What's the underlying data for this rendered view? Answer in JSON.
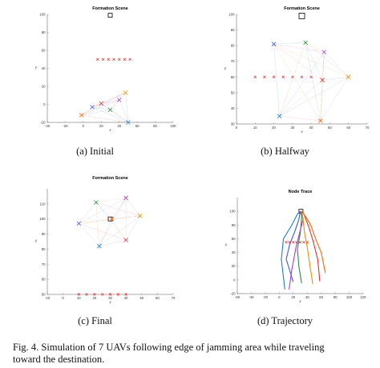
{
  "panels": [
    {
      "title": "Formation Scene",
      "caption": "(a)  Initial"
    },
    {
      "title": "Formation Scene",
      "caption": "(b)  Halfway"
    },
    {
      "title": "Formation Scene",
      "caption": "(c)  Final"
    },
    {
      "title": "Node Trace",
      "caption": "(d)  Trajectory"
    }
  ],
  "figure_caption": {
    "line1": "Fig. 4.  Simulation of 7 UAVs following edge of jamming area while traveling",
    "line2": "toward the destination."
  },
  "colors": {
    "uav": [
      "#3b5bdb",
      "#2b8a3e",
      "#ae3ec9",
      "#f08c00",
      "#e03131",
      "#1c7ed6",
      "#f76707"
    ],
    "jamming_edge": "#e03131",
    "edges": "#9aa7b5",
    "target": "#000000"
  },
  "chart_data": [
    {
      "type": "scatter",
      "title": "Formation Scene",
      "xlabel": "x",
      "ylabel": "y",
      "xlim": [
        -40,
        100
      ],
      "ylim": [
        -20,
        100
      ],
      "xticks": [
        -40,
        -20,
        0,
        20,
        40,
        60,
        80,
        100
      ],
      "yticks": [
        -20,
        0,
        20,
        40,
        60,
        80,
        100
      ],
      "target": [
        30,
        99
      ],
      "jamming_edge": {
        "x": [
          16,
          22,
          28,
          34,
          40,
          46,
          52
        ],
        "y": [
          50,
          50,
          50,
          50,
          50,
          50,
          50
        ]
      },
      "uavs": {
        "x": [
          10,
          30,
          40,
          47,
          20,
          50,
          -2
        ],
        "y": [
          -3,
          -6,
          5,
          13,
          1,
          -20,
          -12
        ]
      }
    },
    {
      "type": "scatter",
      "title": "Formation Scene",
      "xlabel": "x",
      "ylabel": "y",
      "xlim": [
        0,
        70
      ],
      "ylim": [
        30,
        100
      ],
      "xticks": [
        0,
        10,
        20,
        30,
        40,
        50,
        60,
        70
      ],
      "yticks": [
        30,
        40,
        50,
        60,
        70,
        80,
        90,
        100
      ],
      "target": [
        35,
        99
      ],
      "jamming_edge": {
        "x": [
          10,
          15,
          20,
          25,
          30,
          35,
          40
        ],
        "y": [
          60,
          60,
          60,
          60,
          60,
          60,
          60
        ]
      },
      "uavs": {
        "x": [
          20,
          37,
          47,
          60,
          46,
          23,
          45
        ],
        "y": [
          81,
          82,
          76,
          60,
          58,
          35,
          32
        ]
      }
    },
    {
      "type": "scatter",
      "title": "Formation Scene",
      "xlabel": "x",
      "ylabel": "y",
      "xlim": [
        -10,
        70
      ],
      "ylim": [
        50,
        120
      ],
      "xticks": [
        -10,
        0,
        10,
        20,
        30,
        40,
        50,
        60,
        70
      ],
      "yticks": [
        50,
        60,
        70,
        80,
        90,
        100,
        110
      ],
      "target": [
        30,
        100
      ],
      "jamming_edge": {
        "x": [
          10,
          15,
          20,
          25,
          30,
          35,
          40
        ],
        "y": [
          50,
          50,
          50,
          50,
          50,
          50,
          50
        ]
      },
      "uavs": {
        "x": [
          10,
          21,
          40,
          49,
          40,
          23,
          31
        ],
        "y": [
          97,
          111,
          114,
          102,
          86,
          82,
          100
        ]
      }
    },
    {
      "type": "line",
      "title": "Node Trace",
      "xlabel": "x",
      "ylabel": "y",
      "xlim": [
        -60,
        120
      ],
      "ylim": [
        -20,
        120
      ],
      "xticks": [
        -60,
        -40,
        -20,
        0,
        20,
        40,
        60,
        80,
        100,
        120
      ],
      "yticks": [
        -20,
        0,
        20,
        40,
        60,
        80,
        100
      ],
      "target": [
        31,
        100
      ],
      "jamming_edge": {
        "x": [
          10,
          15,
          20,
          25,
          30,
          35,
          40
        ],
        "y": [
          55,
          55,
          55,
          55,
          55,
          55,
          55
        ]
      },
      "series": [
        {
          "x": [
            20,
            10,
            15,
            22,
            28,
            30
          ],
          "y": [
            -3,
            30,
            52,
            70,
            88,
            100
          ]
        },
        {
          "x": [
            32,
            28,
            26,
            30,
            32,
            31
          ],
          "y": [
            -5,
            20,
            45,
            68,
            90,
            100
          ]
        },
        {
          "x": [
            14,
            18,
            24,
            30,
            34,
            32
          ],
          "y": [
            -14,
            15,
            48,
            72,
            88,
            100
          ]
        },
        {
          "x": [
            48,
            44,
            40,
            36,
            34,
            32
          ],
          "y": [
            -6,
            20,
            48,
            70,
            90,
            100
          ]
        },
        {
          "x": [
            58,
            55,
            48,
            42,
            36,
            33
          ],
          "y": [
            -2,
            30,
            58,
            78,
            94,
            100
          ]
        },
        {
          "x": [
            8,
            3,
            6,
            18,
            26,
            30
          ],
          "y": [
            -14,
            30,
            60,
            80,
            96,
            100
          ]
        },
        {
          "x": [
            66,
            60,
            52,
            45,
            38,
            32
          ],
          "y": [
            10,
            40,
            60,
            80,
            92,
            100
          ]
        }
      ]
    }
  ]
}
